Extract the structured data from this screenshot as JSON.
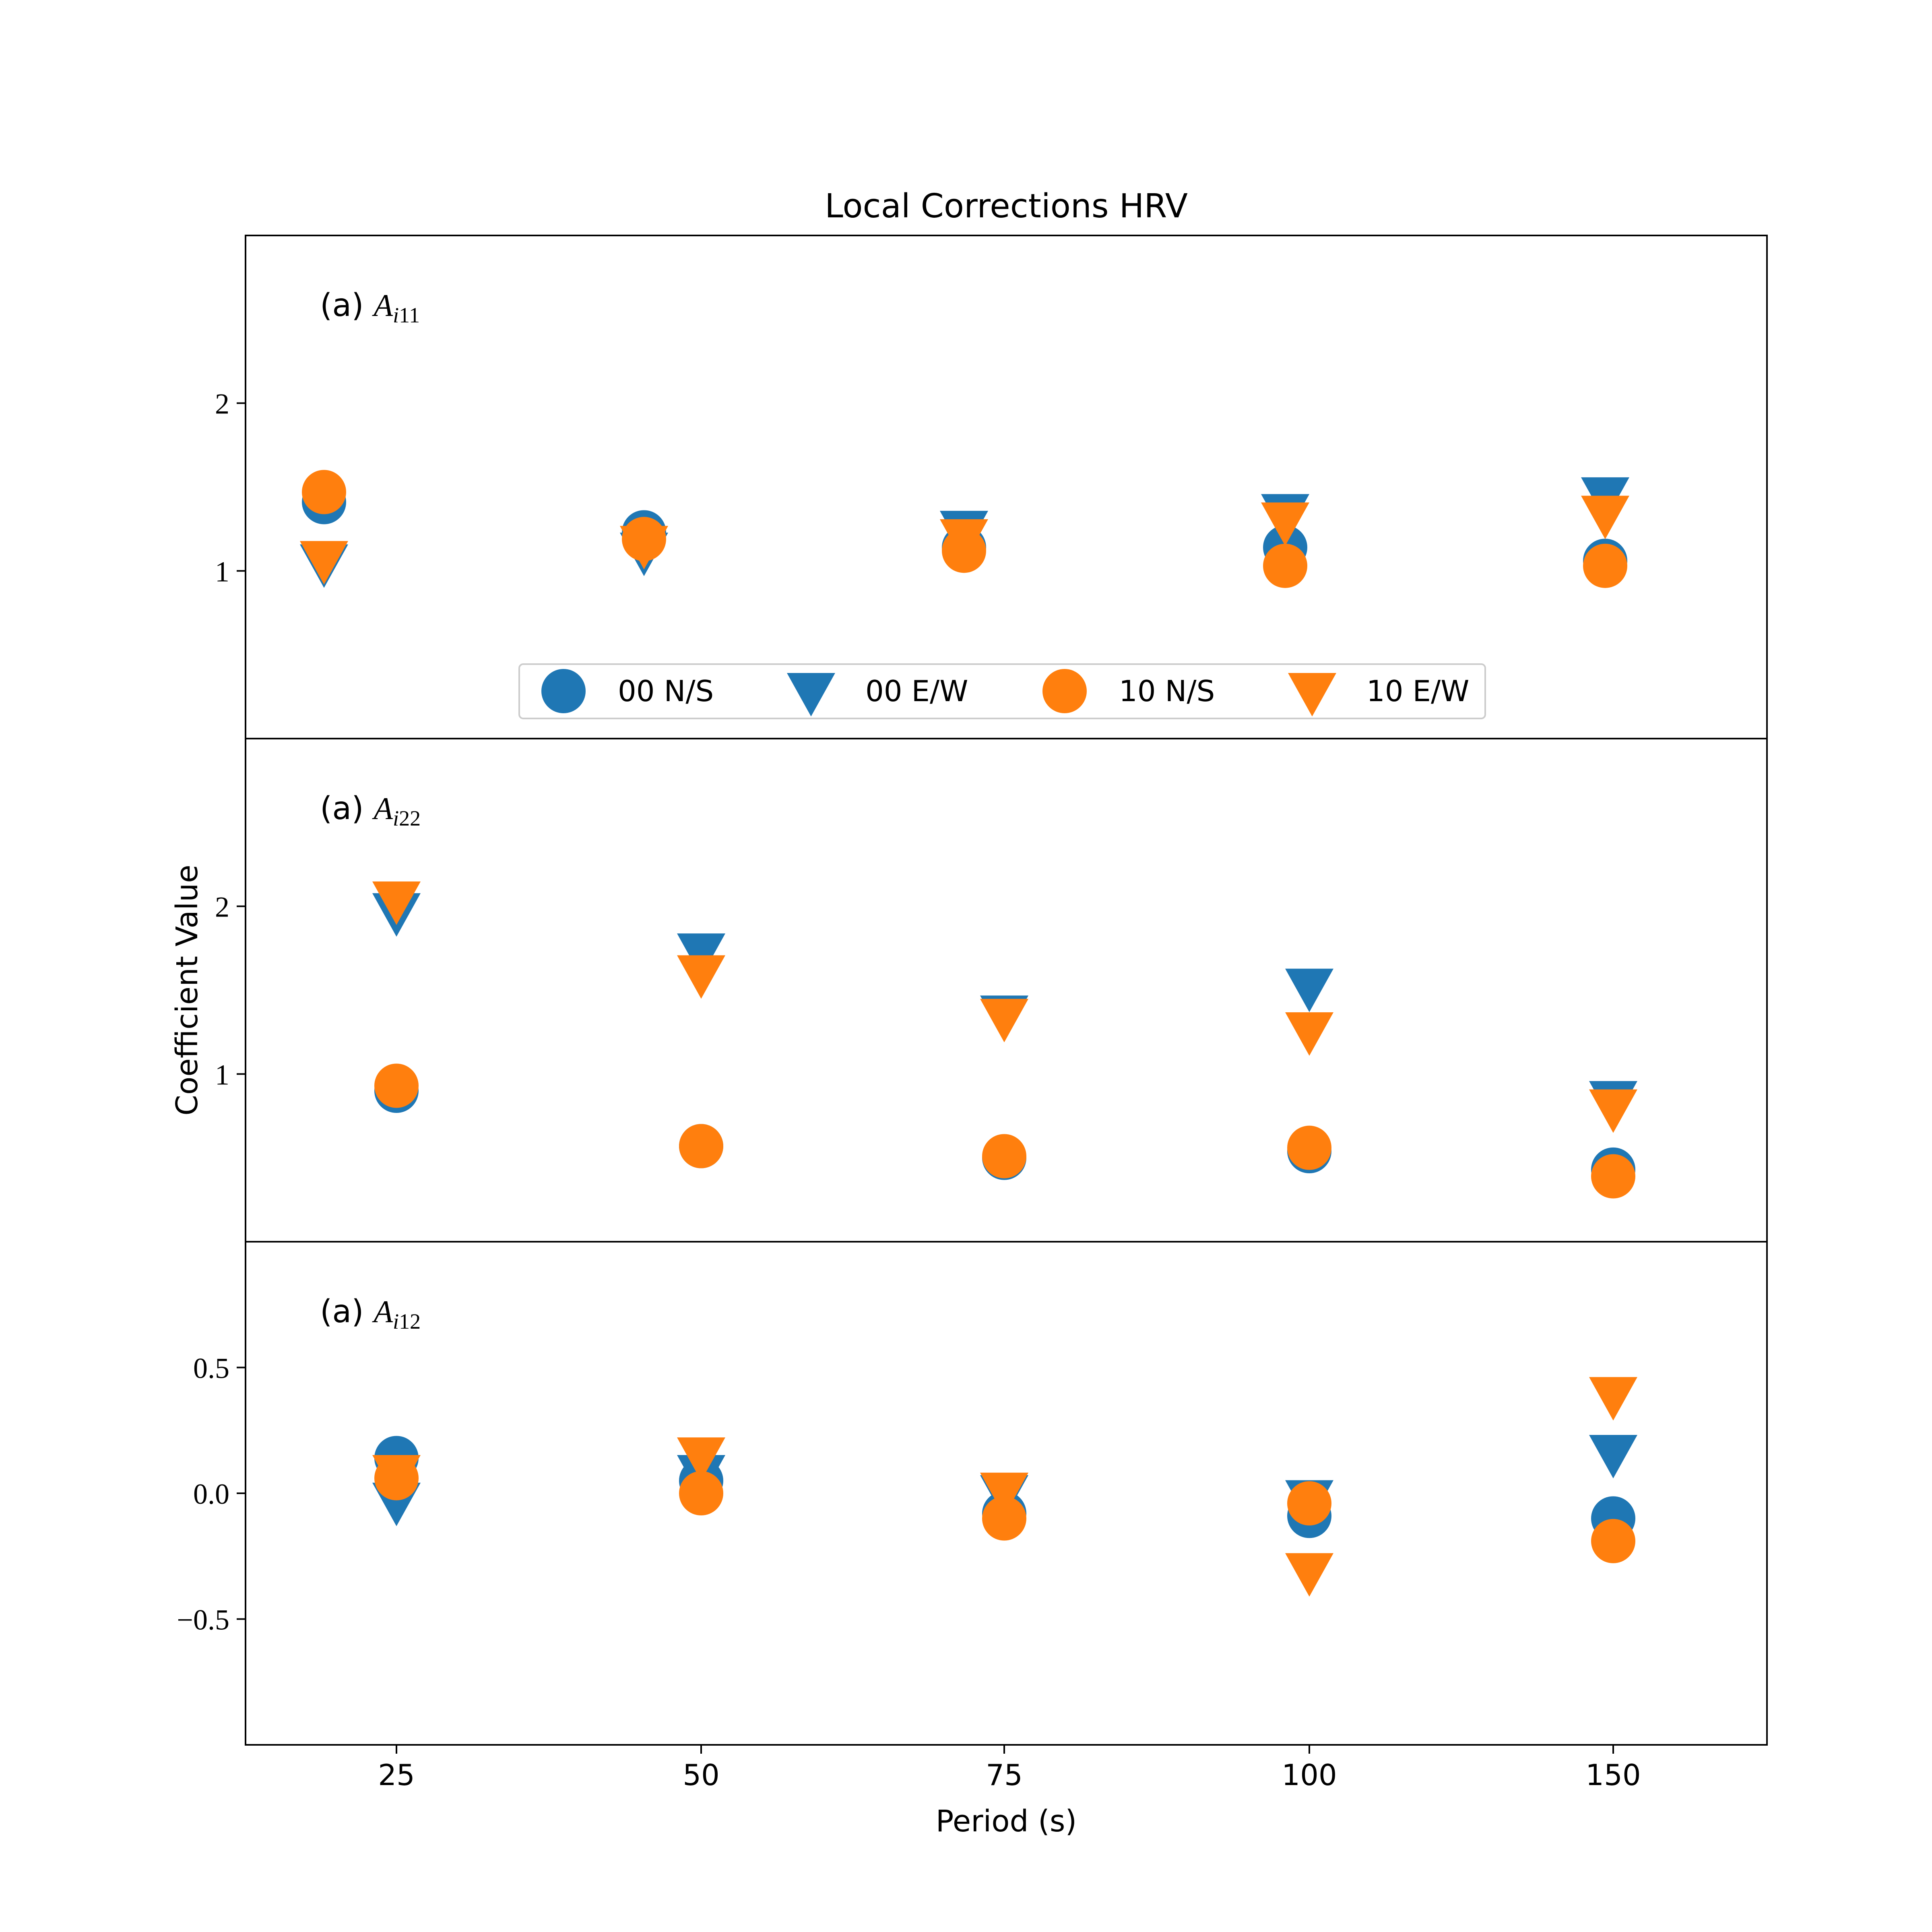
{
  "figure_title": "Local Corrections HRV",
  "colors": {
    "series_00": "#1f77b4",
    "series_10": "#ff7f0e",
    "axes": "#000000",
    "legend_border": "#cccccc"
  },
  "legend": [
    {
      "label": "00 N/S",
      "marker": "circle",
      "color": "#1f77b4"
    },
    {
      "label": "00 E/W",
      "marker": "triangle-down",
      "color": "#1f77b4"
    },
    {
      "label": "10 N/S",
      "marker": "circle",
      "color": "#ff7f0e"
    },
    {
      "label": "10 E/W",
      "marker": "triangle-down",
      "color": "#ff7f0e"
    }
  ],
  "chart_data": {
    "type": "scatter",
    "title": "Local Corrections HRV",
    "xlabel": "Period (s)",
    "ylabel": "Coefficient Value",
    "x_categories": [
      "25",
      "50",
      "75",
      "100",
      "150"
    ],
    "panels": [
      {
        "label_prefix": "(a) ",
        "label_symbol": "A",
        "label_subscript": "i11",
        "ylim": [
          0,
          3
        ],
        "yticks": [
          1,
          2
        ],
        "ytick_labels": [
          "1",
          "2"
        ],
        "legend_placement": "lower center",
        "series": [
          {
            "name": "00 N/S",
            "marker": "circle",
            "color": "#1f77b4",
            "x": [
              19,
              45,
              71,
              98,
              124
            ],
            "y": [
              1.41,
              1.23,
              1.14,
              1.14,
              1.06
            ]
          },
          {
            "name": "00 E/W",
            "marker": "triangle-down",
            "color": "#1f77b4",
            "x": [
              19,
              45,
              71,
              98,
              124
            ],
            "y": [
              1.05,
              1.12,
              1.25,
              1.35,
              1.45
            ]
          },
          {
            "name": "10 N/S",
            "marker": "circle",
            "color": "#ff7f0e",
            "x": [
              19,
              45,
              71,
              98,
              124
            ],
            "y": [
              1.47,
              1.19,
              1.12,
              1.03,
              1.03
            ]
          },
          {
            "name": "10 E/W",
            "marker": "triangle-down",
            "color": "#ff7f0e",
            "x": [
              19,
              45,
              71,
              98,
              124
            ],
            "y": [
              1.07,
              1.16,
              1.2,
              1.3,
              1.34
            ]
          }
        ]
      },
      {
        "label_prefix": "(a) ",
        "label_symbol": "A",
        "label_subscript": "i22",
        "ylim": [
          0,
          3
        ],
        "yticks": [
          1,
          2
        ],
        "ytick_labels": [
          "1",
          "2"
        ],
        "series": [
          {
            "name": "00 N/S",
            "marker": "circle",
            "color": "#1f77b4",
            "x": [
              "25",
              "50",
              "75",
              "100",
              "150"
            ],
            "y": [
              0.9,
              0.57,
              0.5,
              0.54,
              0.43
            ]
          },
          {
            "name": "00 E/W",
            "marker": "triangle-down",
            "color": "#1f77b4",
            "x": [
              "25",
              "50",
              "75",
              "100",
              "150"
            ],
            "y": [
              1.97,
              1.73,
              1.36,
              1.52,
              0.85
            ]
          },
          {
            "name": "10 N/S",
            "marker": "circle",
            "color": "#ff7f0e",
            "x": [
              "25",
              "50",
              "75",
              "100",
              "150"
            ],
            "y": [
              0.93,
              0.57,
              0.51,
              0.56,
              0.39
            ]
          },
          {
            "name": "10 E/W",
            "marker": "triangle-down",
            "color": "#ff7f0e",
            "x": [
              "25",
              "50",
              "75",
              "100",
              "150"
            ],
            "y": [
              2.04,
              1.6,
              1.34,
              1.26,
              0.8
            ]
          }
        ]
      },
      {
        "label_prefix": "(a) ",
        "label_symbol": "A",
        "label_subscript": "i12",
        "ylim": [
          -1,
          1
        ],
        "yticks": [
          -0.5,
          0.0,
          0.5
        ],
        "ytick_labels": [
          "−0.5",
          "0.0",
          "0.5"
        ],
        "series": [
          {
            "name": "00 N/S",
            "marker": "circle",
            "color": "#1f77b4",
            "x": [
              "25",
              "50",
              "75",
              "100",
              "150"
            ],
            "y": [
              0.14,
              0.05,
              -0.08,
              -0.09,
              -0.1
            ]
          },
          {
            "name": "00 E/W",
            "marker": "triangle-down",
            "color": "#1f77b4",
            "x": [
              "25",
              "50",
              "75",
              "100",
              "150"
            ],
            "y": [
              -0.03,
              0.08,
              0.0,
              -0.02,
              0.16
            ]
          },
          {
            "name": "10 N/S",
            "marker": "circle",
            "color": "#ff7f0e",
            "x": [
              "25",
              "50",
              "75",
              "100",
              "150"
            ],
            "y": [
              0.06,
              0.0,
              -0.1,
              -0.04,
              -0.19
            ]
          },
          {
            "name": "10 E/W",
            "marker": "triangle-down",
            "color": "#ff7f0e",
            "x": [
              "25",
              "50",
              "75",
              "100",
              "150"
            ],
            "y": [
              0.08,
              0.15,
              0.01,
              -0.31,
              0.39
            ]
          }
        ]
      }
    ]
  }
}
